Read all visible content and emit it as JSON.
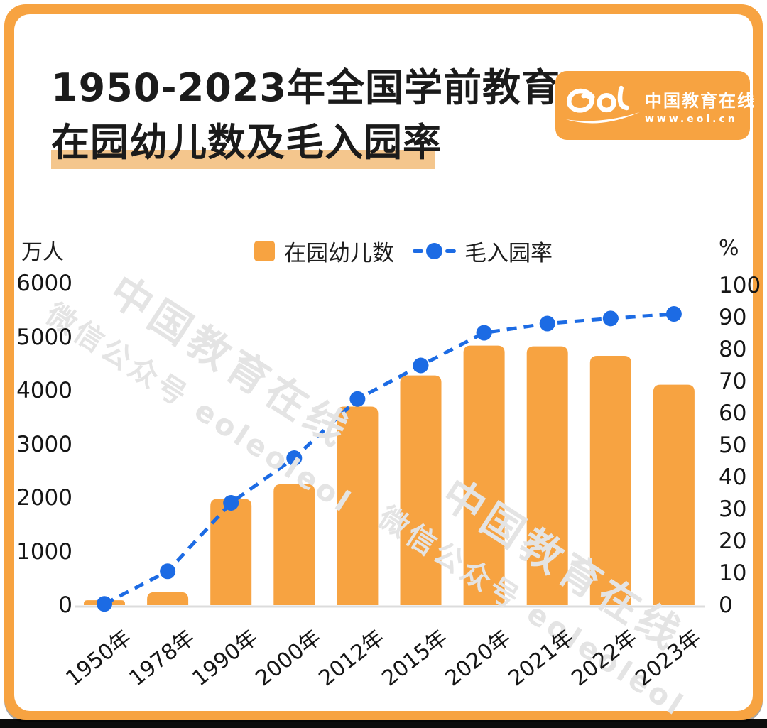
{
  "page": {
    "title_line1": "1950-2023年全国学前教育",
    "title_line2": "在园幼儿数及毛入园率"
  },
  "logo": {
    "glyph": "eol",
    "brand": "中国教育在线",
    "url": "www.eol.cn"
  },
  "watermark": {
    "line1": "中国教育在线",
    "line2": "微信公众号 eoleoleol"
  },
  "legend": {
    "bar_label": "在园幼儿数",
    "line_label": "毛入园率"
  },
  "axes": {
    "left_unit": "万人",
    "right_unit": "%"
  },
  "colors": {
    "orange": "#F7A341",
    "blue": "#1C6BE4",
    "highlight": "#F4C68D",
    "axis_line": "#DCDCDC",
    "watermark": "#E4E4E4",
    "text": "#1B1B1B",
    "logo_text": "#FFFFFF"
  },
  "chart_data": {
    "type": "bar",
    "combo": "bar+line dual-axis",
    "title": "1950-2023年全国学前教育在园幼儿数及毛入园率",
    "categories": [
      "1950年",
      "1978年",
      "1990年",
      "2000年",
      "2012年",
      "2015年",
      "2020年",
      "2021年",
      "2022年",
      "2023年"
    ],
    "series": [
      {
        "name": "在园幼儿数",
        "type": "bar",
        "axis": "left",
        "unit": "万人",
        "values": [
          90,
          240,
          1972,
          2244,
          3686,
          4265,
          4818,
          4805,
          4628,
          4093
        ]
      },
      {
        "name": "毛入园率",
        "type": "line",
        "axis": "right",
        "unit": "%",
        "line_style": "dashed-with-dots",
        "values": [
          0.4,
          10.6,
          32,
          46,
          64.5,
          75,
          85.2,
          88.1,
          89.7,
          91.1
        ]
      }
    ],
    "left_axis": {
      "label": "万人",
      "min": 0,
      "max": 6000,
      "ticks": [
        0,
        1000,
        2000,
        3000,
        4000,
        5000,
        6000
      ]
    },
    "right_axis": {
      "label": "%",
      "min": 0,
      "max": 100,
      "ticks": [
        0,
        10,
        20,
        30,
        40,
        50,
        60,
        70,
        80,
        90,
        100
      ]
    },
    "grid": false,
    "legend_position": "top-center",
    "x_label_rotation": -38
  }
}
